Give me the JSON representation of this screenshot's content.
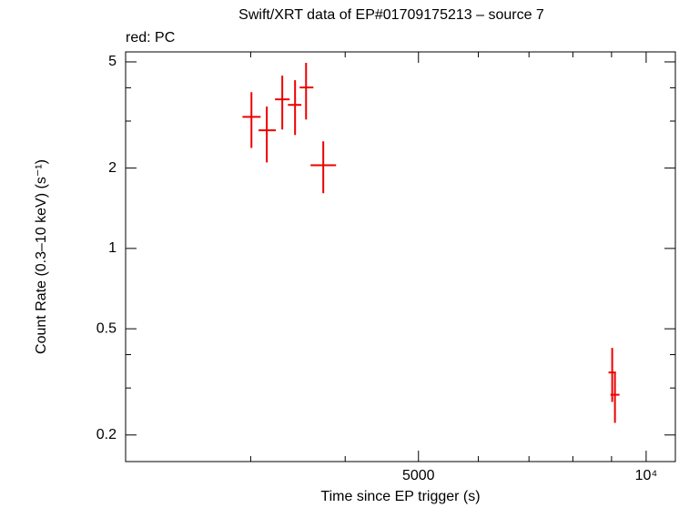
{
  "chart_data": {
    "type": "errorbar",
    "title": "Swift/XRT data of EP#01709175213 – source 7",
    "subtitle": "red: PC",
    "x_label": "Time since EP trigger (s)",
    "y_label": "Count Rate (0.3–10 keV) (s⁻¹)",
    "x_log": true,
    "y_log": true,
    "xlim": [
      2050,
      10930
    ],
    "ylim": [
      0.159,
      5.45
    ],
    "xticks": [
      5000,
      {
        "value": 10000,
        "label": "10⁴"
      }
    ],
    "xminorticks": [
      3000,
      4000,
      6000,
      7000,
      8000,
      9000
    ],
    "yticks": [
      0.2,
      0.5,
      1,
      2,
      5
    ],
    "yminorticks": [
      0.3,
      0.4,
      3,
      4
    ],
    "series": [
      {
        "name": "PC",
        "color": "#ee0000",
        "x": [
          3007,
          3151,
          3303,
          3434,
          3551,
          3742,
          9018,
          9094
        ],
        "x_low": [
          2926,
          3073,
          3231,
          3360,
          3483,
          3600,
          8918,
          8969
        ],
        "x_high": [
          3092,
          3239,
          3378,
          3501,
          3631,
          3891,
          9119,
          9221
        ],
        "values": [
          3.11,
          2.77,
          3.62,
          3.45,
          4.01,
          2.05,
          0.343,
          0.283
        ],
        "y_low": [
          2.38,
          2.1,
          2.79,
          2.66,
          3.04,
          1.61,
          0.266,
          0.222
        ],
        "y_high": [
          3.85,
          3.4,
          4.44,
          4.27,
          4.96,
          2.52,
          0.424,
          0.345
        ]
      }
    ]
  }
}
